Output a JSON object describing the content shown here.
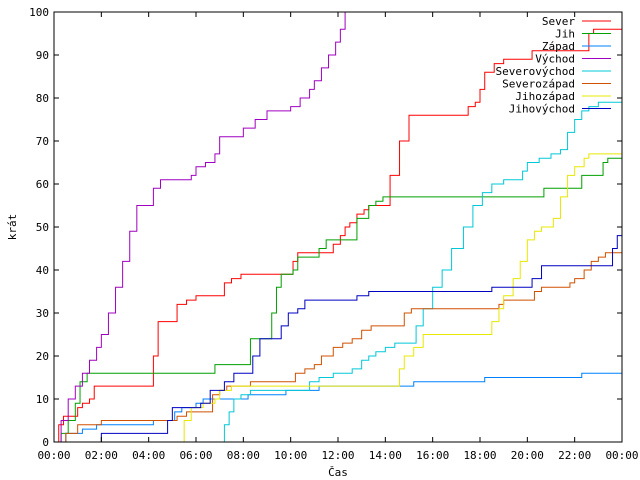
{
  "chart_data": {
    "type": "line",
    "title": "",
    "xlabel": "Čas",
    "ylabel": "krát",
    "xlim": [
      0,
      24
    ],
    "ylim": [
      0,
      100
    ],
    "x_ticks": [
      "00:00",
      "02:00",
      "04:00",
      "06:00",
      "08:00",
      "10:00",
      "12:00",
      "14:00",
      "16:00",
      "18:00",
      "20:00",
      "22:00",
      "00:00"
    ],
    "y_ticks": [
      0,
      10,
      20,
      30,
      40,
      50,
      60,
      70,
      80,
      90,
      100
    ],
    "grid": false,
    "legend_position": "top-right",
    "series": [
      {
        "name": "Sever",
        "color": "#ff0000",
        "points": [
          [
            0,
            0
          ],
          [
            0.2,
            4
          ],
          [
            0.4,
            6
          ],
          [
            0.9,
            6
          ],
          [
            1.0,
            8
          ],
          [
            1.2,
            9
          ],
          [
            1.5,
            10
          ],
          [
            1.7,
            13
          ],
          [
            4.0,
            13
          ],
          [
            4.2,
            20
          ],
          [
            4.4,
            28
          ],
          [
            5.0,
            28
          ],
          [
            5.2,
            32
          ],
          [
            5.6,
            33
          ],
          [
            6.0,
            34
          ],
          [
            7.0,
            34
          ],
          [
            7.2,
            37
          ],
          [
            7.5,
            38
          ],
          [
            7.9,
            39
          ],
          [
            10.0,
            39
          ],
          [
            10.1,
            42
          ],
          [
            10.3,
            44
          ],
          [
            11.5,
            44
          ],
          [
            11.8,
            46
          ],
          [
            12.1,
            48
          ],
          [
            12.3,
            50
          ],
          [
            12.5,
            51
          ],
          [
            12.8,
            53
          ],
          [
            13.1,
            54
          ],
          [
            13.3,
            55
          ],
          [
            13.8,
            55
          ],
          [
            14.2,
            62
          ],
          [
            14.6,
            70
          ],
          [
            15.0,
            76
          ],
          [
            17.3,
            76
          ],
          [
            17.5,
            78
          ],
          [
            17.8,
            79
          ],
          [
            18.0,
            82
          ],
          [
            18.2,
            86
          ],
          [
            18.6,
            88
          ],
          [
            19.0,
            89
          ],
          [
            20.0,
            89
          ],
          [
            20.2,
            91
          ],
          [
            22.5,
            91
          ],
          [
            22.6,
            95
          ],
          [
            22.8,
            96
          ],
          [
            24,
            96
          ]
        ]
      },
      {
        "name": "Jih",
        "color": "#00a000",
        "points": [
          [
            0,
            0
          ],
          [
            0.3,
            2
          ],
          [
            0.6,
            5
          ],
          [
            0.9,
            9
          ],
          [
            1.1,
            14
          ],
          [
            1.4,
            16
          ],
          [
            6.5,
            16
          ],
          [
            6.8,
            18
          ],
          [
            8.0,
            18
          ],
          [
            8.3,
            24
          ],
          [
            9.0,
            24
          ],
          [
            9.2,
            30
          ],
          [
            9.4,
            36
          ],
          [
            9.6,
            39
          ],
          [
            10.1,
            40
          ],
          [
            10.3,
            43
          ],
          [
            10.9,
            43
          ],
          [
            11.2,
            45
          ],
          [
            11.5,
            47
          ],
          [
            12.5,
            47
          ],
          [
            12.8,
            52
          ],
          [
            13.3,
            55
          ],
          [
            13.6,
            56
          ],
          [
            13.9,
            57
          ],
          [
            20.5,
            57
          ],
          [
            20.7,
            59
          ],
          [
            22.0,
            59
          ],
          [
            22.3,
            62
          ],
          [
            23.0,
            62
          ],
          [
            23.2,
            65
          ],
          [
            23.4,
            66
          ],
          [
            24,
            66
          ]
        ]
      },
      {
        "name": "Západ",
        "color": "#0080ff",
        "points": [
          [
            0,
            0
          ],
          [
            0.5,
            2
          ],
          [
            1.2,
            3
          ],
          [
            1.8,
            4
          ],
          [
            2.0,
            4
          ],
          [
            4.0,
            4
          ],
          [
            4.2,
            5
          ],
          [
            5.0,
            5
          ],
          [
            5.1,
            7
          ],
          [
            5.4,
            8
          ],
          [
            6.0,
            9
          ],
          [
            6.3,
            10
          ],
          [
            8.0,
            10
          ],
          [
            8.2,
            11
          ],
          [
            9.5,
            11
          ],
          [
            9.8,
            12
          ],
          [
            11.0,
            12
          ],
          [
            11.2,
            13
          ],
          [
            15.0,
            13
          ],
          [
            15.2,
            14
          ],
          [
            18.0,
            14
          ],
          [
            18.2,
            15
          ],
          [
            22.0,
            15
          ],
          [
            22.3,
            16
          ],
          [
            24,
            16
          ]
        ]
      },
      {
        "name": "Východ",
        "color": "#a000c0",
        "points": [
          [
            0,
            0
          ],
          [
            0.3,
            5
          ],
          [
            0.6,
            10
          ],
          [
            0.9,
            13
          ],
          [
            1.2,
            16
          ],
          [
            1.5,
            19
          ],
          [
            1.8,
            22
          ],
          [
            2.0,
            25
          ],
          [
            2.3,
            30
          ],
          [
            2.6,
            36
          ],
          [
            2.9,
            42
          ],
          [
            3.2,
            49
          ],
          [
            3.5,
            55
          ],
          [
            4.0,
            55
          ],
          [
            4.2,
            59
          ],
          [
            4.5,
            61
          ],
          [
            5.5,
            61
          ],
          [
            5.8,
            62
          ],
          [
            6.0,
            64
          ],
          [
            6.4,
            65
          ],
          [
            6.8,
            67
          ],
          [
            7.0,
            71
          ],
          [
            7.8,
            71
          ],
          [
            8.0,
            73
          ],
          [
            8.5,
            75
          ],
          [
            9.0,
            77
          ],
          [
            10.0,
            78
          ],
          [
            10.4,
            80
          ],
          [
            10.8,
            82
          ],
          [
            11.0,
            84
          ],
          [
            11.3,
            87
          ],
          [
            11.6,
            90
          ],
          [
            11.9,
            93
          ],
          [
            12.1,
            96
          ],
          [
            12.3,
            100
          ]
        ]
      },
      {
        "name": "Severovýchod",
        "color": "#00c8d8",
        "points": [
          [
            7.0,
            0
          ],
          [
            7.2,
            4
          ],
          [
            7.4,
            7
          ],
          [
            7.6,
            10
          ],
          [
            7.9,
            11
          ],
          [
            8.3,
            12
          ],
          [
            10.5,
            12
          ],
          [
            10.8,
            14
          ],
          [
            11.2,
            15
          ],
          [
            11.8,
            16
          ],
          [
            12.6,
            17
          ],
          [
            13.0,
            19
          ],
          [
            13.3,
            20
          ],
          [
            13.6,
            21
          ],
          [
            14.0,
            22
          ],
          [
            14.4,
            23
          ],
          [
            15.0,
            23
          ],
          [
            15.3,
            27
          ],
          [
            15.6,
            31
          ],
          [
            16.0,
            36
          ],
          [
            16.4,
            40
          ],
          [
            16.8,
            45
          ],
          [
            17.3,
            50
          ],
          [
            17.7,
            55
          ],
          [
            18.1,
            58
          ],
          [
            18.5,
            60
          ],
          [
            19.0,
            61
          ],
          [
            19.5,
            61
          ],
          [
            19.8,
            63
          ],
          [
            20.0,
            65
          ],
          [
            20.5,
            66
          ],
          [
            21.0,
            67
          ],
          [
            21.4,
            68
          ],
          [
            21.7,
            72
          ],
          [
            22.0,
            75
          ],
          [
            22.3,
            77
          ],
          [
            22.6,
            78
          ],
          [
            23.0,
            79
          ],
          [
            24,
            79
          ]
        ]
      },
      {
        "name": "Severozápad",
        "color": "#d05000",
        "points": [
          [
            0,
            0
          ],
          [
            0.5,
            2
          ],
          [
            1.0,
            4
          ],
          [
            2.0,
            5
          ],
          [
            5.0,
            5
          ],
          [
            5.2,
            6
          ],
          [
            5.6,
            7
          ],
          [
            6.5,
            7
          ],
          [
            6.7,
            11
          ],
          [
            7.0,
            12
          ],
          [
            7.3,
            13
          ],
          [
            8.0,
            13
          ],
          [
            8.3,
            14
          ],
          [
            10.0,
            14
          ],
          [
            10.2,
            16
          ],
          [
            10.6,
            17
          ],
          [
            11.0,
            18
          ],
          [
            11.3,
            20
          ],
          [
            11.8,
            22
          ],
          [
            12.2,
            23
          ],
          [
            12.6,
            24
          ],
          [
            13.0,
            26
          ],
          [
            13.4,
            27
          ],
          [
            14.5,
            27
          ],
          [
            14.8,
            30
          ],
          [
            15.1,
            31
          ],
          [
            18.5,
            31
          ],
          [
            18.8,
            32
          ],
          [
            19.0,
            33
          ],
          [
            20.0,
            33
          ],
          [
            20.3,
            35
          ],
          [
            20.6,
            36
          ],
          [
            21.5,
            36
          ],
          [
            21.8,
            37
          ],
          [
            22.0,
            38
          ],
          [
            22.4,
            40
          ],
          [
            22.7,
            42
          ],
          [
            23.0,
            43
          ],
          [
            23.3,
            44
          ],
          [
            24,
            44
          ]
        ]
      },
      {
        "name": "Jihozápad",
        "color": "#e8e800",
        "points": [
          [
            5.3,
            0
          ],
          [
            5.5,
            5
          ],
          [
            5.8,
            8
          ],
          [
            6.3,
            9
          ],
          [
            6.8,
            10
          ],
          [
            7.0,
            12
          ],
          [
            7.5,
            13
          ],
          [
            14.4,
            13
          ],
          [
            14.6,
            17
          ],
          [
            14.8,
            20
          ],
          [
            15.2,
            22
          ],
          [
            15.6,
            25
          ],
          [
            18.3,
            25
          ],
          [
            18.5,
            28
          ],
          [
            18.8,
            31
          ],
          [
            19.0,
            34
          ],
          [
            19.4,
            38
          ],
          [
            19.7,
            42
          ],
          [
            20.0,
            47
          ],
          [
            20.3,
            49
          ],
          [
            20.6,
            50
          ],
          [
            21.1,
            52
          ],
          [
            21.4,
            57
          ],
          [
            21.7,
            62
          ],
          [
            22.0,
            64
          ],
          [
            22.4,
            66
          ],
          [
            22.6,
            67
          ],
          [
            24,
            67
          ]
        ]
      },
      {
        "name": "Jihovýchod",
        "color": "#0000c0",
        "points": [
          [
            1.9,
            0
          ],
          [
            2.0,
            2
          ],
          [
            4.6,
            2
          ],
          [
            4.8,
            5
          ],
          [
            5.0,
            8
          ],
          [
            6.0,
            8
          ],
          [
            6.2,
            9
          ],
          [
            6.6,
            12
          ],
          [
            7.2,
            14
          ],
          [
            7.6,
            16
          ],
          [
            8.1,
            16
          ],
          [
            8.4,
            20
          ],
          [
            8.7,
            24
          ],
          [
            9.3,
            24
          ],
          [
            9.6,
            27
          ],
          [
            9.9,
            30
          ],
          [
            10.3,
            31
          ],
          [
            10.6,
            33
          ],
          [
            12.5,
            33
          ],
          [
            12.8,
            34
          ],
          [
            13.3,
            35
          ],
          [
            18.0,
            35
          ],
          [
            18.5,
            36
          ],
          [
            19.8,
            36
          ],
          [
            20.2,
            38
          ],
          [
            20.6,
            41
          ],
          [
            23.4,
            41
          ],
          [
            23.6,
            45
          ],
          [
            23.8,
            48
          ],
          [
            24,
            48
          ]
        ]
      }
    ]
  }
}
